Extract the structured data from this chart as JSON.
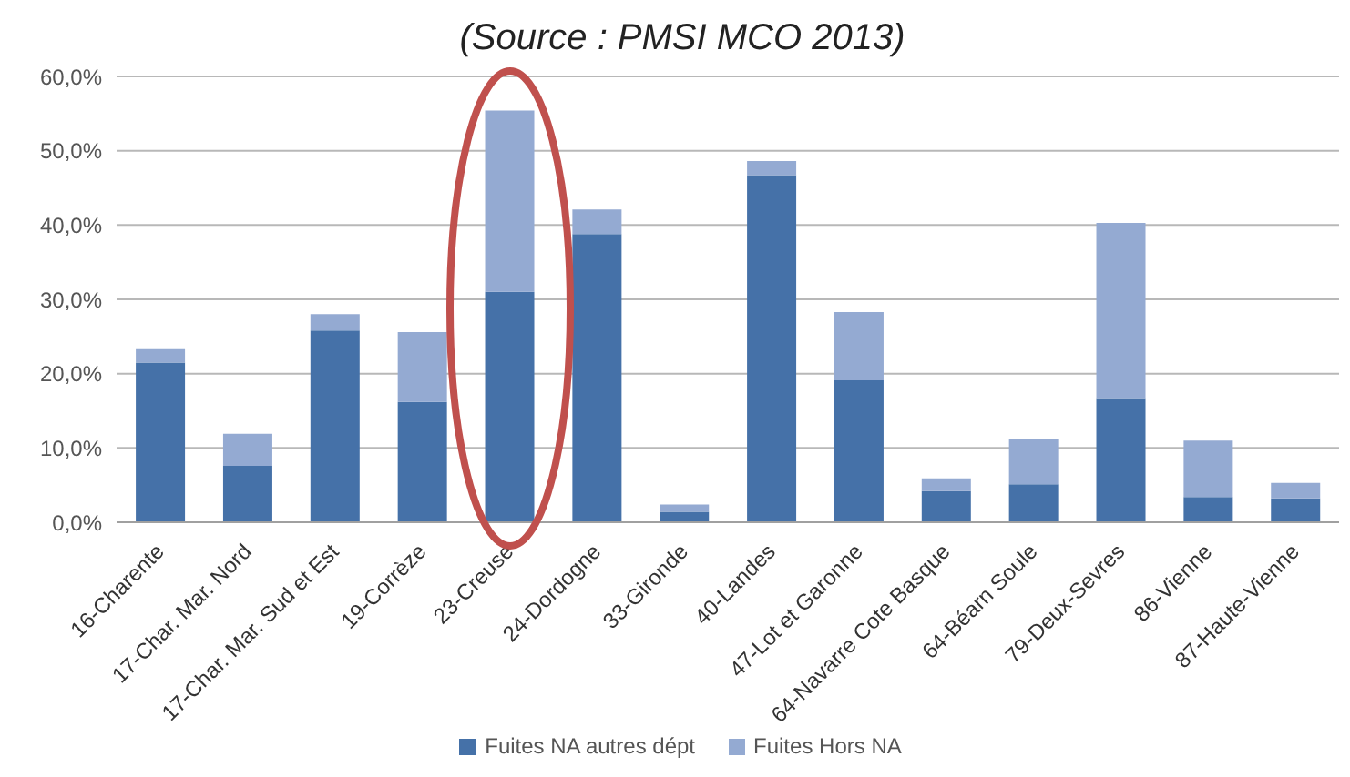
{
  "chart_data": {
    "type": "bar",
    "title": "(Source : PMSI MCO 2013)",
    "stacked": true,
    "categories": [
      "16-Charente",
      "17-Char. Mar. Nord",
      "17-Char. Mar. Sud et Est",
      "19-Corrèze",
      "23-Creuse",
      "24-Dordogne",
      "33-Gironde",
      "40-Landes",
      "47-Lot et Garonne",
      "64-Navarre Cote Basque",
      "64-Béarn Soule",
      "79-Deux-Sevres",
      "86-Vienne",
      "87-Haute-Vienne"
    ],
    "series": [
      {
        "name": "Fuites NA autres dépt",
        "color": "#4571a8",
        "values": [
          21.5,
          7.6,
          25.8,
          16.2,
          31.0,
          38.8,
          1.4,
          46.7,
          19.1,
          4.2,
          5.1,
          16.7,
          3.4,
          3.2
        ]
      },
      {
        "name": "Fuites Hors NA",
        "color": "#94aad2",
        "values": [
          1.8,
          4.3,
          2.2,
          9.4,
          24.4,
          3.3,
          1.0,
          1.9,
          9.2,
          1.7,
          6.1,
          23.6,
          7.6,
          2.1
        ]
      }
    ],
    "ylim": [
      0,
      60
    ],
    "yticks": [
      {
        "value": 0,
        "label": "0,0%"
      },
      {
        "value": 10,
        "label": "10,0%"
      },
      {
        "value": 20,
        "label": "20,0%"
      },
      {
        "value": 30,
        "label": "30,0%"
      },
      {
        "value": 40,
        "label": "40,0%"
      },
      {
        "value": 50,
        "label": "50,0%"
      },
      {
        "value": 60,
        "label": "60,0%"
      }
    ],
    "grid": "y",
    "legend": "bottom"
  }
}
